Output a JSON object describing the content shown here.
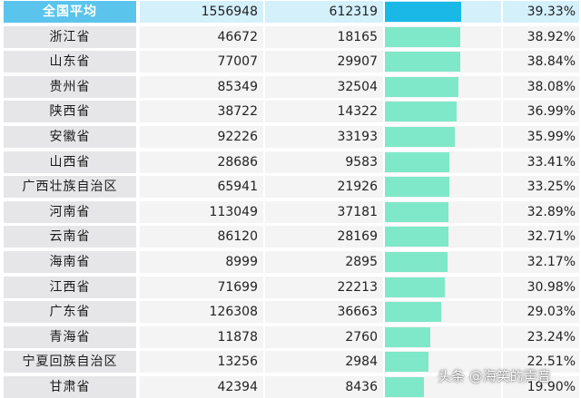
{
  "rows": [
    {
      "name": "全国平均",
      "a": "1556948",
      "b": "612319",
      "pct": "39.33%",
      "ratio": 0.3933,
      "header": true
    },
    {
      "name": "浙江省",
      "a": "46672",
      "b": "18165",
      "pct": "38.92%",
      "ratio": 0.3892
    },
    {
      "name": "山东省",
      "a": "77007",
      "b": "29907",
      "pct": "38.84%",
      "ratio": 0.3884
    },
    {
      "name": "贵州省",
      "a": "85349",
      "b": "32504",
      "pct": "38.08%",
      "ratio": 0.3808
    },
    {
      "name": "陕西省",
      "a": "38722",
      "b": "14322",
      "pct": "36.99%",
      "ratio": 0.3699
    },
    {
      "name": "安徽省",
      "a": "92226",
      "b": "33193",
      "pct": "35.99%",
      "ratio": 0.3599
    },
    {
      "name": "山西省",
      "a": "28686",
      "b": "9583",
      "pct": "33.41%",
      "ratio": 0.3341
    },
    {
      "name": "广西壮族自治区",
      "a": "65941",
      "b": "21926",
      "pct": "33.25%",
      "ratio": 0.3325
    },
    {
      "name": "河南省",
      "a": "113049",
      "b": "37181",
      "pct": "32.89%",
      "ratio": 0.3289
    },
    {
      "name": "云南省",
      "a": "86120",
      "b": "28169",
      "pct": "32.71%",
      "ratio": 0.3271
    },
    {
      "name": "海南省",
      "a": "8999",
      "b": "2895",
      "pct": "32.17%",
      "ratio": 0.3217
    },
    {
      "name": "江西省",
      "a": "71699",
      "b": "22213",
      "pct": "30.98%",
      "ratio": 0.3098
    },
    {
      "name": "广东省",
      "a": "126308",
      "b": "36663",
      "pct": "29.03%",
      "ratio": 0.2903
    },
    {
      "name": "青海省",
      "a": "11878",
      "b": "2760",
      "pct": "23.24%",
      "ratio": 0.2324
    },
    {
      "name": "宁夏回族自治区",
      "a": "13256",
      "b": "2984",
      "pct": "22.51%",
      "ratio": 0.2251
    },
    {
      "name": "甘肃省",
      "a": "42394",
      "b": "8436",
      "pct": "19.90%",
      "ratio": 0.199
    }
  ],
  "watermark": {
    "text": "头条 @海笑的声音"
  },
  "colors": {
    "header_fill": "#19b8e6",
    "row_fill": "#7fe8c8",
    "header_name_bg": "#5bc4ec"
  }
}
